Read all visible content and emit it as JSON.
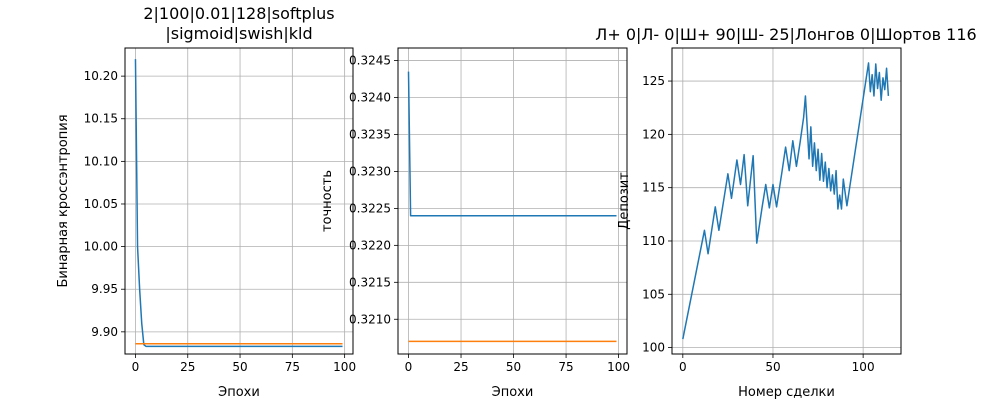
{
  "colors": {
    "series1": "#1f77b4",
    "series2": "#ff7f0e",
    "grid": "#b0b0b0",
    "axis": "#000000"
  },
  "chart_data": [
    {
      "type": "line",
      "title": [
        "2|100|0.01|128|softplus",
        "|sigmoid|swish|kld"
      ],
      "xlabel": "Эпохи",
      "ylabel": "Бинарная кроссэнтропия",
      "xlim": [
        -5,
        104
      ],
      "ylim": [
        9.874,
        10.233
      ],
      "xticks": [
        0,
        25,
        50,
        75,
        100
      ],
      "yticks": [
        9.9,
        9.95,
        10.0,
        10.05,
        10.1,
        10.15,
        10.2
      ],
      "ytick_labels": [
        "9.90",
        "9.95",
        "10.00",
        "10.05",
        "10.10",
        "10.15",
        "10.20"
      ],
      "grid": true,
      "series": [
        {
          "x": [
            0,
            1,
            2,
            3,
            4,
            5,
            10,
            99
          ],
          "y": [
            10.22,
            10.0,
            9.95,
            9.91,
            9.885,
            9.883,
            9.883,
            9.883
          ]
        },
        {
          "x": [
            0,
            99
          ],
          "y": [
            9.886,
            9.886
          ]
        }
      ]
    },
    {
      "type": "line",
      "title": [],
      "xlabel": "Эпохи",
      "ylabel": "точность",
      "xlim": [
        -5,
        104
      ],
      "ylim": [
        0.32053,
        0.32467
      ],
      "xticks": [
        0,
        25,
        50,
        75,
        100
      ],
      "yticks": [
        0.321,
        0.3215,
        0.322,
        0.3225,
        0.323,
        0.3235,
        0.324,
        0.3245
      ],
      "ytick_labels": [
        "0.3210",
        "0.3215",
        "0.3220",
        "0.3225",
        "0.3230",
        "0.3235",
        "0.3240",
        "0.3245"
      ],
      "grid": true,
      "series": [
        {
          "x": [
            0,
            1,
            99
          ],
          "y": [
            0.32435,
            0.3224,
            0.3224
          ]
        },
        {
          "x": [
            0,
            99
          ],
          "y": [
            0.3207,
            0.3207
          ]
        }
      ]
    },
    {
      "type": "line",
      "title": [
        "Л+ 0|Л- 0|Ш+ 90|Ш- 25|Лонгов 0|Шортов 116"
      ],
      "xlabel": "Номер сделки",
      "ylabel": "Депозит",
      "xlim": [
        -6,
        121
      ],
      "ylim": [
        99.4,
        128.1
      ],
      "xticks": [
        0,
        50,
        100
      ],
      "yticks": [
        100,
        105,
        110,
        115,
        120,
        125
      ],
      "ytick_labels": [
        "100",
        "105",
        "110",
        "115",
        "120",
        "125"
      ],
      "grid": true,
      "series": [
        {
          "x": [
            0,
            12,
            14,
            18,
            20,
            25,
            27,
            30,
            32,
            34,
            36,
            39,
            41,
            44,
            46,
            48,
            50,
            52,
            55,
            57,
            59,
            61,
            63,
            65,
            67,
            68,
            70,
            71,
            72,
            73,
            74,
            75,
            76,
            77,
            78,
            79,
            80,
            81,
            82,
            83,
            84,
            85,
            86,
            87,
            88,
            89,
            91,
            103,
            104,
            105,
            106,
            107,
            108,
            109,
            110,
            111,
            112,
            113,
            114
          ],
          "y": [
            100.8,
            111.0,
            108.8,
            113.2,
            111.0,
            116.3,
            114.0,
            117.6,
            115.3,
            118.1,
            113.3,
            118.0,
            109.8,
            113.2,
            115.3,
            113.1,
            115.3,
            113.2,
            116.5,
            118.8,
            116.6,
            119.4,
            117.0,
            119.2,
            121.6,
            123.6,
            117.7,
            120.7,
            117.0,
            119.2,
            116.6,
            118.6,
            115.7,
            118.2,
            115.6,
            117.4,
            115.0,
            116.8,
            114.7,
            116.2,
            114.4,
            116.6,
            113.0,
            114.3,
            113.0,
            115.8,
            113.3,
            126.7,
            124.0,
            125.6,
            123.6,
            126.6,
            124.3,
            125.8,
            123.2,
            125.3,
            124.2,
            126.2,
            123.6
          ]
        }
      ]
    }
  ]
}
